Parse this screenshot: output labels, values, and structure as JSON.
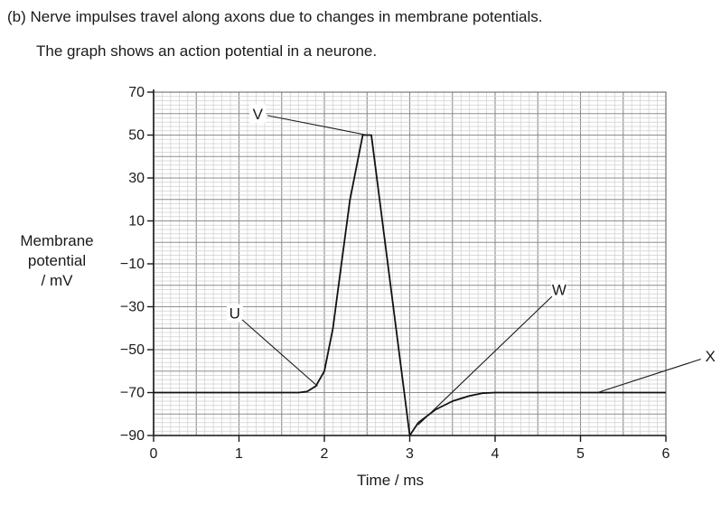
{
  "question": {
    "part": "(b)",
    "line1": "Nerve impulses travel along axons due to changes in membrane potentials.",
    "line2": "The graph shows an action potential in a neurone."
  },
  "chart_data": {
    "type": "line",
    "title": "",
    "xlabel": "Time / ms",
    "ylabel_lines": [
      "Membrane",
      "potential",
      "/ mV"
    ],
    "xlim": [
      0,
      6
    ],
    "ylim": [
      -90,
      70
    ],
    "x_ticks": [
      0,
      1,
      2,
      3,
      4,
      5,
      6
    ],
    "y_ticks": [
      -90,
      -70,
      -50,
      -30,
      -10,
      10,
      30,
      50,
      70
    ],
    "grid": true,
    "series": [
      {
        "x": [
          0,
          1.7,
          1.8,
          1.9,
          2.0,
          2.1,
          2.2,
          2.3,
          2.45,
          2.5,
          2.55,
          3.0,
          3.1,
          3.3,
          3.5,
          3.7,
          3.85,
          4.0,
          6.0
        ],
        "y": [
          -70,
          -70,
          -69.5,
          -67,
          -60,
          -40,
          -10,
          20,
          50,
          50,
          50,
          -90,
          -84,
          -78,
          -74,
          -71.5,
          -70.3,
          -70,
          -70
        ]
      }
    ],
    "annotations": [
      {
        "label": "U",
        "text_at": [
          0.95,
          -33
        ],
        "point_at": [
          1.92,
          -67
        ]
      },
      {
        "label": "V",
        "text_at": [
          1.22,
          60
        ],
        "point_at": [
          2.5,
          50
        ]
      },
      {
        "label": "W",
        "text_at": [
          4.75,
          -22
        ],
        "point_at": [
          3.1,
          -85
        ]
      },
      {
        "label": "X",
        "text_at": [
          6.52,
          -53
        ],
        "point_at": [
          5.2,
          -70
        ]
      }
    ]
  }
}
